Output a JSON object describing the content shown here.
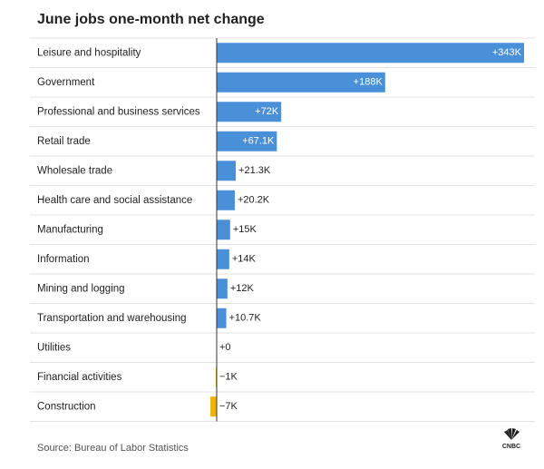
{
  "chart_data": {
    "type": "bar",
    "orientation": "horizontal",
    "title": "June jobs one-month net change",
    "categories": [
      "Leisure and hospitality",
      "Government",
      "Professional and business services",
      "Retail trade",
      "Wholesale trade",
      "Health care and social assistance",
      "Manufacturing",
      "Information",
      "Mining and logging",
      "Transportation and warehousing",
      "Utilities",
      "Financial activities",
      "Construction"
    ],
    "values": [
      343,
      188,
      72,
      67.1,
      21.3,
      20.2,
      15,
      14,
      12,
      10.7,
      0,
      -1,
      -7
    ],
    "value_labels": [
      "+343K",
      "+188K",
      "+72K",
      "+67.1K",
      "+21.3K",
      "+20.2K",
      "+15K",
      "+14K",
      "+12K",
      "+10.7K",
      "+0",
      "−1K",
      "−7K"
    ],
    "color": "#4a90d9",
    "negative_color": "#f0b400",
    "source": "Source: Bureau of Labor Statistics",
    "logo": "CNBC"
  }
}
